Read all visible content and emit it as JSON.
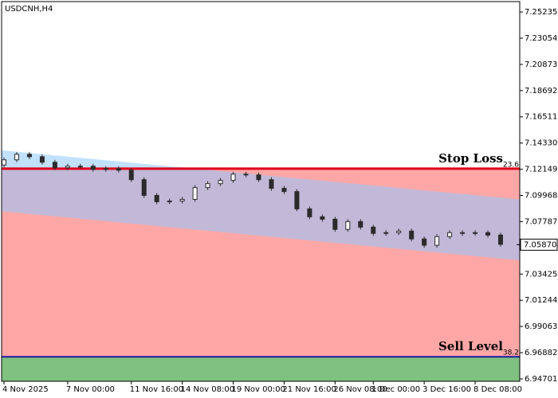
{
  "chart_data": {
    "type": "candlestick",
    "title": "USDCNH,H4",
    "categories": [
      "4 Nov 2025",
      null,
      null,
      null,
      null,
      "7 Nov 00:00",
      null,
      null,
      null,
      null,
      "11 Nov 16:00",
      null,
      null,
      null,
      "14 Nov 08:00",
      null,
      null,
      null,
      "19 Nov 00:00",
      null,
      null,
      null,
      "21 Nov 16:00",
      null,
      null,
      null,
      "26 Nov 08:00",
      null,
      null,
      "1 Dec 00:00",
      null,
      null,
      null,
      "3 Dec 16:00",
      null,
      null,
      null,
      "8 Dec 08:00",
      null,
      null
    ],
    "open": [
      7.125,
      7.1293,
      7.1339,
      7.1319,
      7.1273,
      7.1227,
      7.124,
      7.124,
      7.1214,
      7.122,
      7.1207,
      7.1128,
      7.0997,
      7.0944,
      7.095,
      7.0964,
      7.1062,
      7.1095,
      7.1122,
      7.1174,
      7.1168,
      7.1128,
      7.1056,
      7.1029,
      7.0885,
      7.0819,
      7.0799,
      7.0714,
      7.0779,
      7.0733,
      7.0681,
      7.0687,
      7.07,
      7.0635,
      7.0582,
      7.0654,
      7.0687,
      7.0681,
      7.0687,
      7.0667
    ],
    "close": [
      7.1293,
      7.1339,
      7.1319,
      7.1273,
      7.1227,
      7.124,
      7.124,
      7.1214,
      7.122,
      7.1207,
      7.1128,
      7.0997,
      7.0944,
      7.095,
      7.0964,
      7.1062,
      7.1095,
      7.1122,
      7.1174,
      7.1168,
      7.1128,
      7.1056,
      7.1029,
      7.0885,
      7.0819,
      7.0799,
      7.0714,
      7.0779,
      7.0733,
      7.0681,
      7.0687,
      7.07,
      7.0635,
      7.0582,
      7.0654,
      7.0687,
      7.0681,
      7.0687,
      7.0667,
      7.059
    ],
    "ylim": [
      6.945,
      7.261
    ],
    "yticks": [
      7.25235,
      7.23054,
      7.20873,
      7.18692,
      7.16511,
      {
        "value": 7.1433,
        "label": "7.14330"
      },
      7.12149,
      7.09968,
      7.07787,
      7.05606,
      7.03425,
      7.01244,
      6.99063,
      6.96882,
      6.94701
    ],
    "candle_color": "#2b2b2b",
    "levels": [
      {
        "name": "Stop Loss",
        "label": "23.6",
        "value": 7.122,
        "color": "#e0001a"
      },
      {
        "name": "Sell Level",
        "label": "38.2",
        "value": 6.9654,
        "color": "#1a1aa0"
      }
    ],
    "zones": {
      "sell_color": "#ffa7a7",
      "below_color": "#80c080"
    },
    "channel": {
      "upper": [
        7.1372,
        7.0964
      ],
      "lower": [
        7.0865,
        7.0457
      ],
      "color": "#8ec8ff"
    },
    "current_price": {
      "value": 7.0587,
      "label": "7.05870"
    }
  }
}
